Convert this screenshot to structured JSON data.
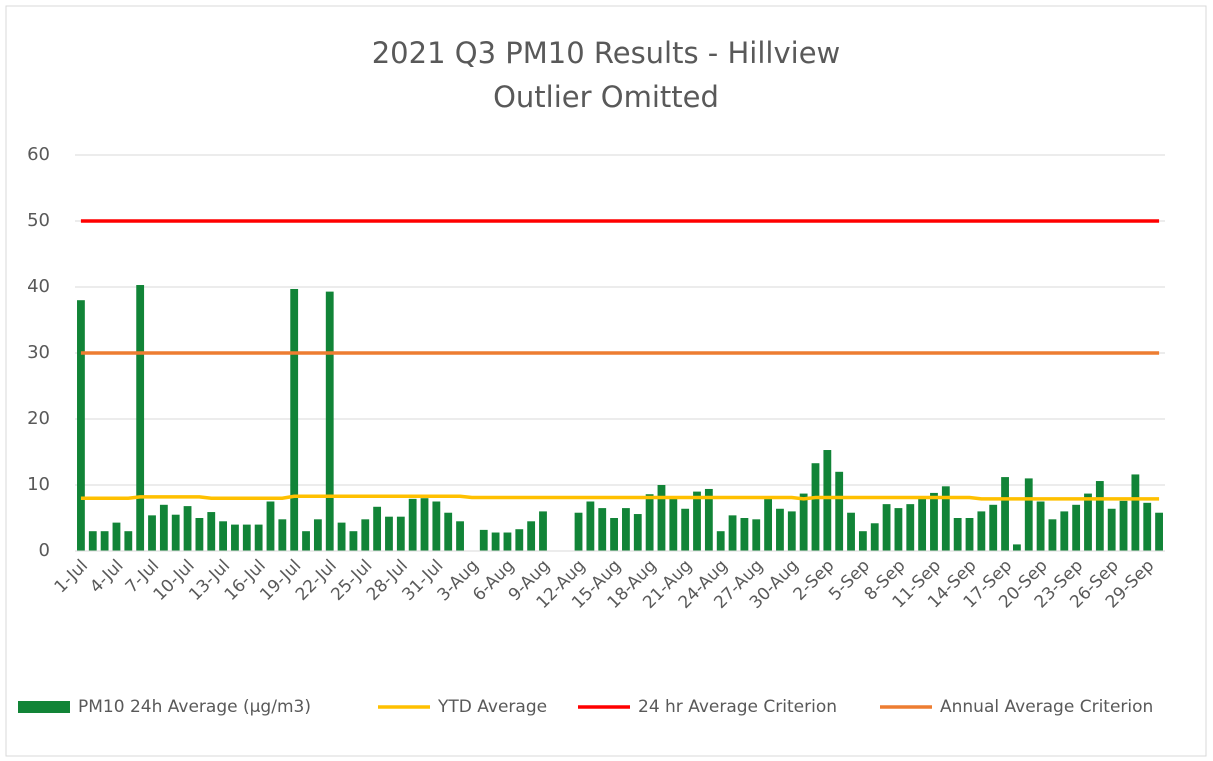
{
  "chart_data": {
    "type": "bar",
    "title": "2021 Q3 PM10 Results - Hillview",
    "subtitle": "Outlier Omitted",
    "categories": [
      "1-Jul",
      null,
      null,
      "4-Jul",
      null,
      null,
      "7-Jul",
      null,
      null,
      "10-Jul",
      null,
      null,
      "13-Jul",
      null,
      null,
      "16-Jul",
      null,
      null,
      "19-Jul",
      null,
      null,
      "22-Jul",
      null,
      null,
      "25-Jul",
      null,
      null,
      "28-Jul",
      null,
      null,
      "31-Jul",
      null,
      null,
      "3-Aug",
      null,
      null,
      "6-Aug",
      null,
      null,
      "9-Aug",
      null,
      null,
      "12-Aug",
      null,
      null,
      "15-Aug",
      null,
      null,
      "18-Aug",
      null,
      null,
      "21-Aug",
      null,
      null,
      "24-Aug",
      null,
      null,
      "27-Aug",
      null,
      null,
      "30-Aug",
      null,
      null,
      "2-Sep",
      null,
      null,
      "5-Sep",
      null,
      null,
      "8-Sep",
      null,
      null,
      "11-Sep",
      null,
      null,
      "14-Sep",
      null,
      null,
      "17-Sep",
      null,
      null,
      "20-Sep",
      null,
      null,
      "23-Sep",
      null,
      null,
      "26-Sep",
      null,
      null,
      "29-Sep",
      null
    ],
    "series": [
      {
        "name": "PM10 24h Average (µg/m3)",
        "type": "bar",
        "color": "#118437",
        "values": [
          38,
          3,
          3,
          4.3,
          3,
          40.3,
          5.4,
          7,
          5.5,
          6.8,
          5,
          5.9,
          4.5,
          4,
          4,
          4,
          7.5,
          4.8,
          39.7,
          3,
          4.8,
          39.3,
          4.3,
          3,
          4.8,
          6.7,
          5.2,
          5.2,
          7.9,
          8,
          7.5,
          5.8,
          4.5,
          null,
          3.2,
          2.8,
          2.8,
          3.3,
          4.5,
          6,
          null,
          null,
          5.8,
          7.5,
          6.5,
          5,
          6.5,
          5.6,
          8.6,
          10,
          8,
          6.4,
          9,
          9.4,
          3,
          5.4,
          5,
          4.8,
          8,
          6.4,
          6,
          8.7,
          13.3,
          15.3,
          12,
          5.8,
          3,
          4.2,
          7.1,
          6.5,
          7.1,
          8,
          8.8,
          9.8,
          5,
          5,
          6,
          7,
          11.2,
          1,
          11,
          7.5,
          4.8,
          6,
          7,
          8.7,
          10.6,
          6.4,
          7.6,
          11.6,
          7.3,
          5.8
        ]
      },
      {
        "name": "YTD Average",
        "type": "line",
        "color": "#ffc000",
        "values": [
          8,
          8,
          8,
          8,
          8,
          8.2,
          8.2,
          8.2,
          8.2,
          8.2,
          8.2,
          8,
          8,
          8,
          8,
          8,
          8,
          8,
          8.3,
          8.3,
          8.3,
          8.3,
          8.3,
          8.3,
          8.3,
          8.3,
          8.3,
          8.3,
          8.3,
          8.3,
          8.3,
          8.3,
          8.3,
          8.1,
          8.1,
          8.1,
          8.1,
          8.1,
          8.1,
          8.1,
          8.1,
          8.1,
          8.1,
          8.1,
          8.1,
          8.1,
          8.1,
          8.1,
          8.1,
          8.1,
          8.1,
          8.1,
          8.1,
          8.1,
          8.1,
          8.1,
          8.1,
          8.1,
          8.1,
          8.1,
          8.1,
          7.9,
          8.1,
          8.1,
          8.1,
          8.1,
          8.1,
          8.1,
          8.1,
          8.1,
          8.1,
          8.1,
          8.1,
          8.1,
          8.1,
          8.1,
          7.9,
          7.9,
          7.9,
          7.9,
          7.9,
          7.9,
          7.9,
          7.9,
          7.9,
          7.9,
          7.9,
          7.9,
          7.9,
          7.9,
          7.9,
          7.9
        ]
      },
      {
        "name": "24 hr Average Criterion",
        "type": "line",
        "color": "#ff0000",
        "values": [
          50,
          50,
          50,
          50,
          50,
          50,
          50,
          50,
          50,
          50,
          50,
          50,
          50,
          50,
          50,
          50,
          50,
          50,
          50,
          50,
          50,
          50,
          50,
          50,
          50,
          50,
          50,
          50,
          50,
          50,
          50,
          50,
          50,
          50,
          50,
          50,
          50,
          50,
          50,
          50,
          50,
          50,
          50,
          50,
          50,
          50,
          50,
          50,
          50,
          50,
          50,
          50,
          50,
          50,
          50,
          50,
          50,
          50,
          50,
          50,
          50,
          50,
          50,
          50,
          50,
          50,
          50,
          50,
          50,
          50,
          50,
          50,
          50,
          50,
          50,
          50,
          50,
          50,
          50,
          50,
          50,
          50,
          50,
          50,
          50,
          50,
          50,
          50,
          50,
          50,
          50,
          50
        ]
      },
      {
        "name": "Annual Average Criterion",
        "type": "line",
        "color": "#ed7d31",
        "values": [
          30,
          30,
          30,
          30,
          30,
          30,
          30,
          30,
          30,
          30,
          30,
          30,
          30,
          30,
          30,
          30,
          30,
          30,
          30,
          30,
          30,
          30,
          30,
          30,
          30,
          30,
          30,
          30,
          30,
          30,
          30,
          30,
          30,
          30,
          30,
          30,
          30,
          30,
          30,
          30,
          30,
          30,
          30,
          30,
          30,
          30,
          30,
          30,
          30,
          30,
          30,
          30,
          30,
          30,
          30,
          30,
          30,
          30,
          30,
          30,
          30,
          30,
          30,
          30,
          30,
          30,
          30,
          30,
          30,
          30,
          30,
          30,
          30,
          30,
          30,
          30,
          30,
          30,
          30,
          30,
          30,
          30,
          30,
          30,
          30,
          30,
          30,
          30,
          30,
          30,
          30,
          30
        ]
      }
    ],
    "ylim": [
      0,
      60
    ],
    "yticks": [
      0,
      10,
      20,
      30,
      40,
      50,
      60
    ],
    "grid": true,
    "legend": "bottom"
  }
}
